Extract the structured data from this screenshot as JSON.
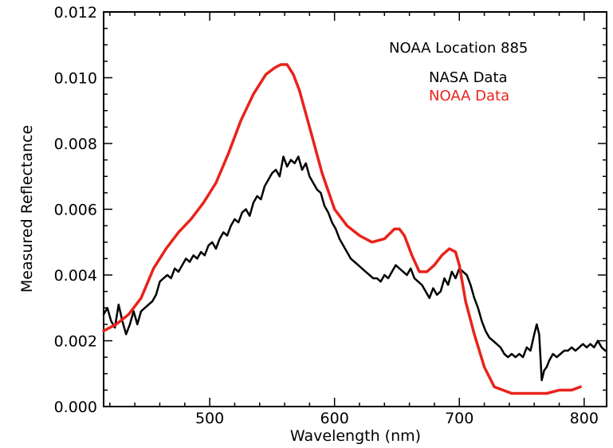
{
  "chart_data": {
    "type": "line",
    "title": "",
    "xlabel": "Wavelength (nm)",
    "ylabel": "Measured Reflectance",
    "xlim": [
      415,
      818
    ],
    "ylim": [
      0.0,
      0.012
    ],
    "x_ticks": [
      500,
      600,
      700,
      800
    ],
    "y_ticks": [
      0.0,
      0.002,
      0.004,
      0.006,
      0.008,
      0.01,
      0.012
    ],
    "x_tick_labels": [
      "500",
      "600",
      "700",
      "800"
    ],
    "y_tick_labels": [
      "0.000",
      "0.002",
      "0.004",
      "0.006",
      "0.008",
      "0.010",
      "0.012"
    ],
    "grid": false,
    "legend_title": "NOAA Location 885",
    "legend_placement": "top-right",
    "series": [
      {
        "name": "NASA Data",
        "color": "#000000",
        "x": [
          415,
          418,
          421,
          424,
          427,
          430,
          433,
          436,
          439,
          442,
          445,
          448,
          451,
          454,
          457,
          460,
          463,
          466,
          469,
          472,
          475,
          478,
          481,
          484,
          487,
          490,
          493,
          496,
          499,
          502,
          505,
          508,
          511,
          514,
          517,
          520,
          523,
          526,
          529,
          532,
          535,
          538,
          541,
          544,
          547,
          550,
          553,
          556,
          559,
          562,
          565,
          568,
          571,
          574,
          577,
          580,
          583,
          586,
          589,
          592,
          595,
          598,
          601,
          604,
          607,
          610,
          613,
          616,
          619,
          622,
          625,
          628,
          631,
          634,
          637,
          640,
          643,
          646,
          649,
          652,
          655,
          658,
          661,
          664,
          667,
          670,
          673,
          676,
          679,
          682,
          685,
          688,
          691,
          694,
          697,
          700,
          703,
          706,
          709,
          712,
          715,
          718,
          721,
          724,
          727,
          730,
          733,
          736,
          739,
          742,
          745,
          748,
          751,
          754,
          757,
          760,
          762,
          764,
          766,
          768,
          770,
          772,
          775,
          778,
          781,
          784,
          787,
          790,
          793,
          796,
          799,
          802,
          805,
          808,
          811,
          814,
          817
        ],
        "y": [
          0.0028,
          0.003,
          0.0026,
          0.0024,
          0.0031,
          0.0026,
          0.0022,
          0.0025,
          0.0029,
          0.0025,
          0.0029,
          0.003,
          0.0031,
          0.0032,
          0.0034,
          0.0038,
          0.0039,
          0.004,
          0.0039,
          0.0042,
          0.0041,
          0.0043,
          0.0045,
          0.0044,
          0.0046,
          0.0045,
          0.0047,
          0.0046,
          0.0049,
          0.005,
          0.0048,
          0.0051,
          0.0053,
          0.0052,
          0.0055,
          0.0057,
          0.0056,
          0.0059,
          0.006,
          0.0058,
          0.0062,
          0.0064,
          0.0063,
          0.0067,
          0.0069,
          0.0071,
          0.0072,
          0.007,
          0.0076,
          0.0073,
          0.0075,
          0.0074,
          0.0076,
          0.0072,
          0.0074,
          0.007,
          0.0068,
          0.0066,
          0.0065,
          0.0061,
          0.0059,
          0.0056,
          0.0054,
          0.0051,
          0.0049,
          0.0047,
          0.0045,
          0.0044,
          0.0043,
          0.0042,
          0.0041,
          0.004,
          0.0039,
          0.0039,
          0.0038,
          0.004,
          0.0039,
          0.0041,
          0.0043,
          0.0042,
          0.0041,
          0.004,
          0.0042,
          0.0039,
          0.0038,
          0.0037,
          0.0035,
          0.0033,
          0.0036,
          0.0034,
          0.0035,
          0.0039,
          0.0037,
          0.0041,
          0.0039,
          0.0042,
          0.0041,
          0.004,
          0.0037,
          0.0033,
          0.003,
          0.0026,
          0.0023,
          0.0021,
          0.002,
          0.0019,
          0.0018,
          0.0016,
          0.0015,
          0.0016,
          0.0015,
          0.0016,
          0.0015,
          0.0018,
          0.0017,
          0.0022,
          0.0025,
          0.0022,
          0.0008,
          0.0011,
          0.0012,
          0.0014,
          0.0016,
          0.0015,
          0.0016,
          0.0017,
          0.0017,
          0.0018,
          0.0017,
          0.0018,
          0.0019,
          0.0018,
          0.0019,
          0.0018,
          0.002,
          0.0018,
          0.0017
        ]
      },
      {
        "name": "NOAA Data",
        "color": "#e8231b",
        "x": [
          415,
          425,
          435,
          445,
          455,
          465,
          475,
          485,
          495,
          505,
          515,
          525,
          535,
          545,
          552,
          557,
          562,
          567,
          572,
          580,
          590,
          600,
          610,
          620,
          630,
          640,
          648,
          652,
          656,
          662,
          668,
          674,
          680,
          686,
          692,
          697,
          700,
          705,
          712,
          720,
          728,
          735,
          742,
          750,
          760,
          770,
          780,
          790,
          797
        ],
        "y": [
          0.0023,
          0.0025,
          0.0028,
          0.0033,
          0.0042,
          0.0048,
          0.0053,
          0.0057,
          0.0062,
          0.0068,
          0.0077,
          0.0087,
          0.0095,
          0.0101,
          0.0103,
          0.0104,
          0.0104,
          0.0101,
          0.0096,
          0.0085,
          0.0071,
          0.006,
          0.0055,
          0.0052,
          0.005,
          0.0051,
          0.0054,
          0.0054,
          0.0052,
          0.0046,
          0.0041,
          0.0041,
          0.0043,
          0.0046,
          0.0048,
          0.0047,
          0.0043,
          0.0032,
          0.0022,
          0.0012,
          0.0006,
          0.0005,
          0.0004,
          0.0004,
          0.0004,
          0.0004,
          0.0005,
          0.0005,
          0.0006
        ]
      }
    ]
  }
}
